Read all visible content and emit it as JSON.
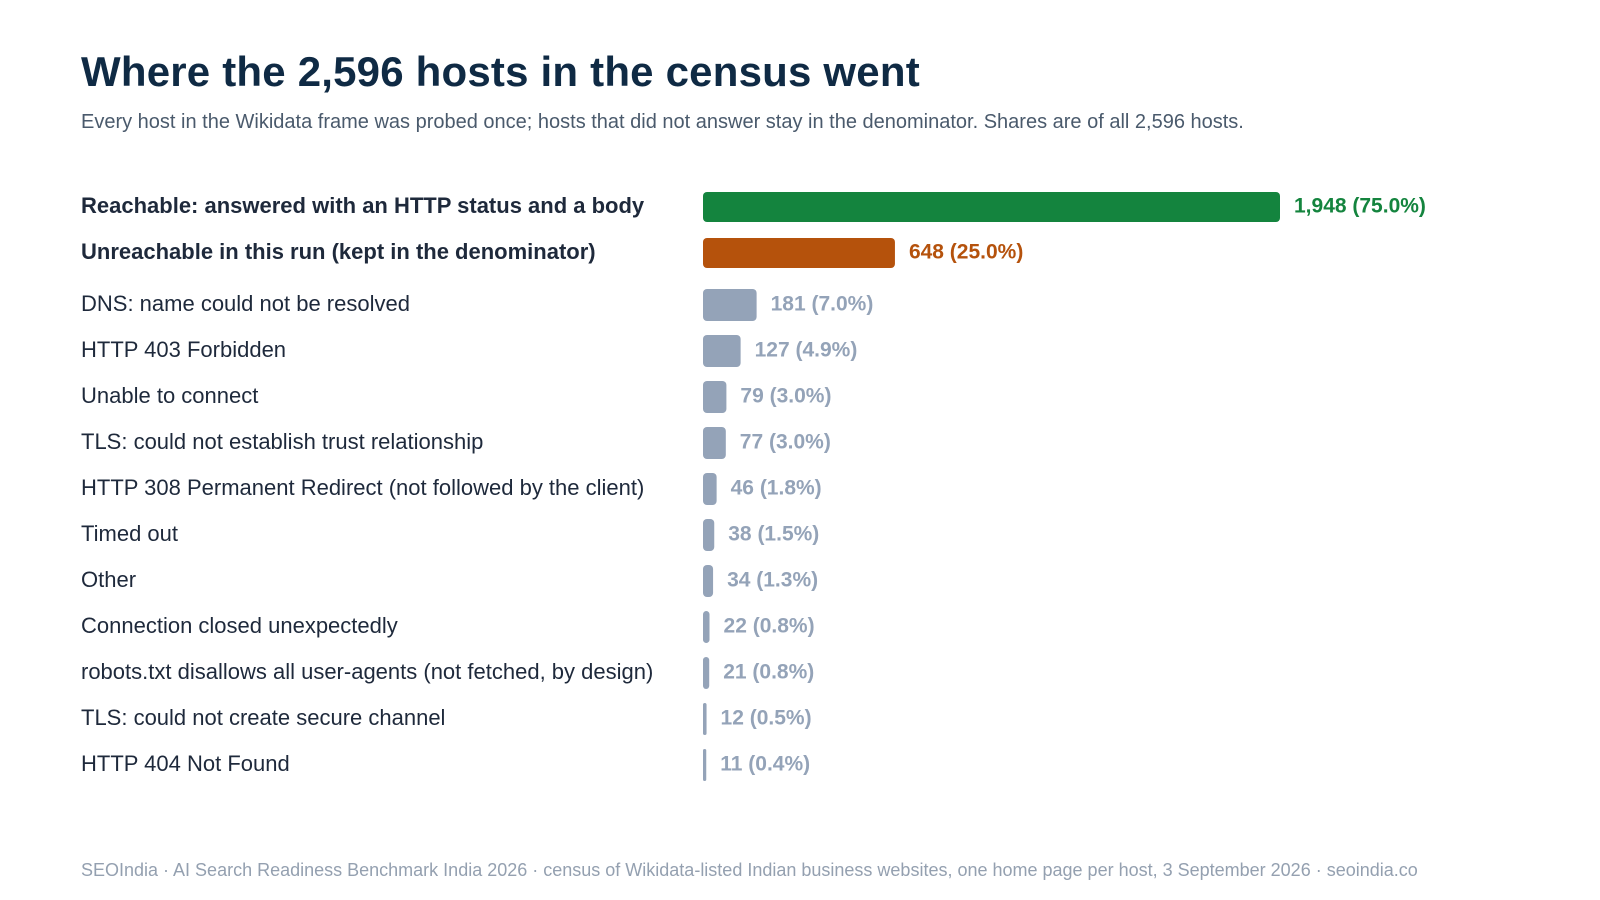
{
  "chart_data": {
    "type": "bar",
    "orientation": "horizontal",
    "title": "Where the 2,596 hosts in the census went",
    "subtitle": "Every host in the Wikidata frame was probed once; hosts that did not answer stay in the denominator. Shares are of all 2,596 hosts.",
    "total": 2596,
    "categories": [
      "Reachable: answered with an HTTP status and a body",
      "Unreachable in this run (kept in the denominator)",
      "DNS: name could not be resolved",
      "HTTP 403 Forbidden",
      "Unable to connect",
      "TLS: could not establish trust relationship",
      "HTTP 308 Permanent Redirect (not followed by the client)",
      "Timed out",
      "Other",
      "Connection closed unexpectedly",
      "robots.txt disallows all user-agents (not fetched, by design)",
      "TLS: could not create secure channel",
      "HTTP 404 Not Found"
    ],
    "values": [
      1948,
      648,
      181,
      127,
      79,
      77,
      46,
      38,
      34,
      22,
      21,
      12,
      11
    ],
    "value_labels": [
      "1,948 (75.0%)",
      "648 (25.0%)",
      "181 (7.0%)",
      "127 (4.9%)",
      "79 (3.0%)",
      "77 (3.0%)",
      "46 (1.8%)",
      "38 (1.5%)",
      "34 (1.3%)",
      "22 (0.8%)",
      "21 (0.8%)",
      "12 (0.5%)",
      "11 (0.4%)"
    ],
    "emphasis": [
      true,
      true,
      false,
      false,
      false,
      false,
      false,
      false,
      false,
      false,
      false,
      false,
      false
    ],
    "colors": {
      "reachable": "#14843e",
      "unreachable": "#b5520c",
      "breakdown": "#94a3b8",
      "breakdown_label": "#94a3b8",
      "category_text": "#1e293b",
      "title": "#0f2a44"
    },
    "bar_colors": [
      "#14843e",
      "#b5520c",
      "#94a3b8",
      "#94a3b8",
      "#94a3b8",
      "#94a3b8",
      "#94a3b8",
      "#94a3b8",
      "#94a3b8",
      "#94a3b8",
      "#94a3b8",
      "#94a3b8",
      "#94a3b8"
    ],
    "label_colors": [
      "#14843e",
      "#b5520c",
      "#94a3b8",
      "#94a3b8",
      "#94a3b8",
      "#94a3b8",
      "#94a3b8",
      "#94a3b8",
      "#94a3b8",
      "#94a3b8",
      "#94a3b8",
      "#94a3b8",
      "#94a3b8"
    ],
    "grid": false,
    "legend": "none",
    "xlabel": "",
    "ylabel": ""
  },
  "footer": "SEOIndia · AI Search Readiness Benchmark India 2026 · census of Wikidata-listed Indian business websites, one home page per host, 3 September 2026 · seoindia.co"
}
